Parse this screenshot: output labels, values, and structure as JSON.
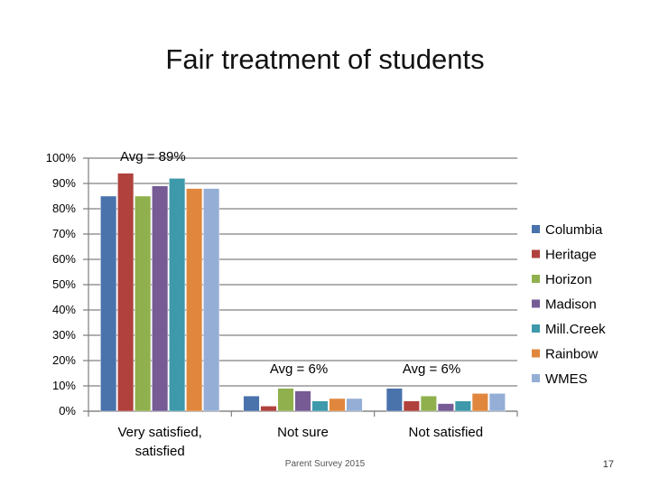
{
  "slide": {
    "title": "Fair treatment of students",
    "footer_text": "Parent Survey 2015",
    "page_number": "17"
  },
  "chart_data": {
    "type": "bar",
    "title": "Fair treatment of students",
    "categories": [
      "Very satisfied, satisfied",
      "Not sure",
      "Not satisfied"
    ],
    "category_label_lines": [
      [
        "Very satisfied,",
        "satisfied"
      ],
      [
        "Not sure"
      ],
      [
        "Not satisfied"
      ]
    ],
    "series": [
      {
        "name": "Columbia",
        "color": "#4a72ab",
        "values": [
          85,
          6,
          9
        ]
      },
      {
        "name": "Heritage",
        "color": "#b0413d",
        "values": [
          94,
          2,
          4
        ]
      },
      {
        "name": "Horizon",
        "color": "#8fb04d",
        "values": [
          85,
          9,
          6
        ]
      },
      {
        "name": "Madison",
        "color": "#765b95",
        "values": [
          89,
          8,
          3
        ]
      },
      {
        "name": "Mill.Creek",
        "color": "#3e99ab",
        "values": [
          92,
          4,
          4
        ]
      },
      {
        "name": "Rainbow",
        "color": "#e0873d",
        "values": [
          88,
          5,
          7
        ]
      },
      {
        "name": "WMES",
        "color": "#95aed5",
        "values": [
          88,
          5,
          7
        ]
      }
    ],
    "y_ticks": [
      "0%",
      "10%",
      "20%",
      "30%",
      "40%",
      "50%",
      "60%",
      "70%",
      "80%",
      "90%",
      "100%"
    ],
    "ylim": [
      0,
      100
    ],
    "grid": true,
    "legend_position": "right",
    "annotations": [
      "Avg = 89%",
      "Avg = 6%",
      "Avg = 6%"
    ]
  }
}
